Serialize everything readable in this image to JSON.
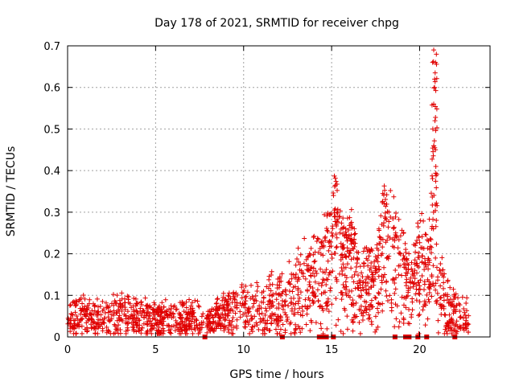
{
  "chart_data": {
    "type": "scatter",
    "title": "Day 178 of 2021, SRMTID for receiver chpg",
    "xlabel": "GPS time / hours",
    "ylabel": "SRMTID / TECUs",
    "xlim": [
      0,
      24
    ],
    "ylim": [
      0,
      0.7
    ],
    "xticks": [
      0,
      5,
      10,
      15,
      20
    ],
    "yticks": [
      0,
      0.1,
      0.2,
      0.3,
      0.4,
      0.5,
      0.6,
      0.7
    ],
    "xtick_labels": [
      "0",
      "5",
      "10",
      "15",
      "20"
    ],
    "ytick_labels": [
      "0",
      "0.1",
      "0.2",
      "0.3",
      "0.4",
      "0.5",
      "0.6",
      "0.7"
    ],
    "grid": true,
    "marker": "+",
    "color": "#e00000",
    "series_trend": {
      "x": [
        0,
        1,
        2,
        3,
        4,
        5,
        6,
        7,
        7.6,
        7.9,
        8.5,
        9,
        10,
        11,
        12,
        12.5,
        13,
        13.5,
        14,
        14.5,
        15,
        15.3,
        15.6,
        16,
        16.5,
        17,
        17.5,
        18,
        18.5,
        19,
        19.5,
        20,
        20.5,
        20.8,
        21,
        21.3,
        21.6,
        22,
        22.4,
        22.8
      ],
      "y": [
        0.045,
        0.05,
        0.045,
        0.055,
        0.05,
        0.045,
        0.045,
        0.045,
        0.045,
        0.03,
        0.05,
        0.055,
        0.07,
        0.07,
        0.08,
        0.09,
        0.11,
        0.12,
        0.13,
        0.14,
        0.2,
        0.22,
        0.15,
        0.18,
        0.11,
        0.12,
        0.11,
        0.2,
        0.18,
        0.14,
        0.09,
        0.17,
        0.12,
        0.3,
        0.14,
        0.1,
        0.07,
        0.06,
        0.05,
        0.045
      ]
    },
    "spike_points": {
      "x": [
        20.75,
        20.8,
        20.85,
        20.9,
        20.95,
        20.8,
        20.85,
        20.9,
        20.92,
        20.87
      ],
      "y": [
        0.5,
        0.56,
        0.62,
        0.66,
        0.68,
        0.69,
        0.6,
        0.45,
        0.41,
        0.52
      ]
    },
    "gap_markers": [
      7.8,
      12.2,
      14.3,
      14.5,
      14.7,
      15.1,
      18.6,
      19.2,
      19.4,
      19.9,
      20.4,
      22.0
    ]
  }
}
